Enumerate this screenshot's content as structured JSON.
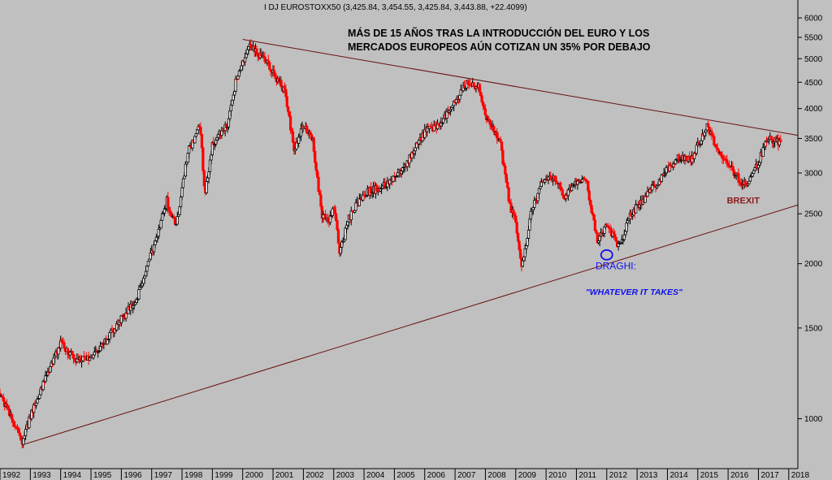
{
  "header": "I DJ EUROSTOXX50 (3,425.84, 3,454.55, 3,425.84, 3,443.88, +22.4099)",
  "chart_data": {
    "type": "candlestick",
    "title_line1": "MÁS DE 15 AÑOS TRAS LA INTRODUCCIÓN DEL EURO Y LOS",
    "title_line2": "MERCADOS EUROPEOS AÚN COTIZAN UN 35%  POR DEBAJO",
    "y_scale": "log",
    "ylim": [
      800,
      6500
    ],
    "xlim": [
      1992.0,
      2018.3
    ],
    "y_ticks": [
      "6000",
      "5500",
      "5000",
      "4500",
      "4000",
      "3500",
      "3000",
      "2500",
      "2000",
      "1500",
      "1000"
    ],
    "x_ticks": [
      "1992",
      "1993",
      "1994",
      "1995",
      "1996",
      "1997",
      "1998",
      "1999",
      "2000",
      "2001",
      "2002",
      "2003",
      "2004",
      "2005",
      "2006",
      "2007",
      "2008",
      "2009",
      "2010",
      "2011",
      "2012",
      "2013",
      "2014",
      "2015",
      "2016",
      "2017",
      "2018"
    ],
    "grid": false,
    "up_color": "#000000",
    "down_color": "#ff0000",
    "key_points": [
      {
        "x": 1992.0,
        "y": 1120
      },
      {
        "x": 1992.5,
        "y": 960
      },
      {
        "x": 1992.75,
        "y": 900
      },
      {
        "x": 1993.0,
        "y": 1010
      },
      {
        "x": 1993.5,
        "y": 1200
      },
      {
        "x": 1994.0,
        "y": 1400
      },
      {
        "x": 1994.5,
        "y": 1300
      },
      {
        "x": 1995.0,
        "y": 1320
      },
      {
        "x": 1995.5,
        "y": 1420
      },
      {
        "x": 1996.0,
        "y": 1560
      },
      {
        "x": 1996.5,
        "y": 1700
      },
      {
        "x": 1997.0,
        "y": 2100
      },
      {
        "x": 1997.5,
        "y": 2650
      },
      {
        "x": 1997.8,
        "y": 2350
      },
      {
        "x": 1998.2,
        "y": 3300
      },
      {
        "x": 1998.6,
        "y": 3700
      },
      {
        "x": 1998.75,
        "y": 2700
      },
      {
        "x": 1999.0,
        "y": 3400
      },
      {
        "x": 1999.5,
        "y": 3750
      },
      {
        "x": 1999.8,
        "y": 4600
      },
      {
        "x": 2000.2,
        "y": 5300
      },
      {
        "x": 2000.5,
        "y": 5100
      },
      {
        "x": 2000.8,
        "y": 4900
      },
      {
        "x": 2001.0,
        "y": 4700
      },
      {
        "x": 2001.4,
        "y": 4300
      },
      {
        "x": 2001.7,
        "y": 3300
      },
      {
        "x": 2002.0,
        "y": 3700
      },
      {
        "x": 2002.3,
        "y": 3500
      },
      {
        "x": 2002.6,
        "y": 2500
      },
      {
        "x": 2002.8,
        "y": 2400
      },
      {
        "x": 2003.0,
        "y": 2600
      },
      {
        "x": 2003.2,
        "y": 2100
      },
      {
        "x": 2003.5,
        "y": 2450
      },
      {
        "x": 2004.0,
        "y": 2750
      },
      {
        "x": 2004.5,
        "y": 2800
      },
      {
        "x": 2005.0,
        "y": 2950
      },
      {
        "x": 2005.5,
        "y": 3200
      },
      {
        "x": 2006.0,
        "y": 3600
      },
      {
        "x": 2006.5,
        "y": 3750
      },
      {
        "x": 2007.0,
        "y": 4100
      },
      {
        "x": 2007.4,
        "y": 4500
      },
      {
        "x": 2007.8,
        "y": 4400
      },
      {
        "x": 2008.0,
        "y": 3900
      },
      {
        "x": 2008.5,
        "y": 3400
      },
      {
        "x": 2008.8,
        "y": 2600
      },
      {
        "x": 2009.0,
        "y": 2400
      },
      {
        "x": 2009.2,
        "y": 1950
      },
      {
        "x": 2009.5,
        "y": 2500
      },
      {
        "x": 2009.9,
        "y": 2900
      },
      {
        "x": 2010.3,
        "y": 2950
      },
      {
        "x": 2010.6,
        "y": 2700
      },
      {
        "x": 2011.0,
        "y": 2900
      },
      {
        "x": 2011.3,
        "y": 2950
      },
      {
        "x": 2011.7,
        "y": 2200
      },
      {
        "x": 2012.0,
        "y": 2400
      },
      {
        "x": 2012.4,
        "y": 2150
      },
      {
        "x": 2012.8,
        "y": 2500
      },
      {
        "x": 2013.3,
        "y": 2700
      },
      {
        "x": 2013.8,
        "y": 2950
      },
      {
        "x": 2014.3,
        "y": 3200
      },
      {
        "x": 2014.8,
        "y": 3200
      },
      {
        "x": 2015.3,
        "y": 3700
      },
      {
        "x": 2015.7,
        "y": 3300
      },
      {
        "x": 2016.0,
        "y": 3100
      },
      {
        "x": 2016.4,
        "y": 2900
      },
      {
        "x": 2016.6,
        "y": 2850
      },
      {
        "x": 2016.9,
        "y": 3050
      },
      {
        "x": 2017.3,
        "y": 3500
      },
      {
        "x": 2017.6,
        "y": 3450
      },
      {
        "x": 2017.75,
        "y": 3444
      }
    ],
    "trendlines": [
      {
        "x1": 1992.75,
        "y1": 890,
        "x2": 2018.3,
        "y2": 2600
      },
      {
        "x1": 2000.0,
        "y1": 5450,
        "x2": 2018.3,
        "y2": 3550
      }
    ],
    "annotations": [
      {
        "text": "BREXIT",
        "x": 2016.5,
        "y": 2620
      },
      {
        "text": "DRAGHI:",
        "x": 2012.3,
        "y": 1950
      },
      {
        "text": "\"WHATEVER IT TAKES\"",
        "x": 2012.9,
        "y": 1740
      }
    ],
    "marker_circle": {
      "x": 2012.0,
      "y": 2080
    }
  }
}
